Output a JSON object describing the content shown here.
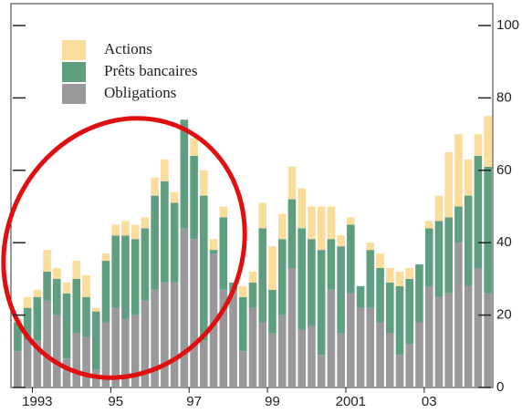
{
  "chart_data": {
    "type": "stacked-bar",
    "categories": [
      null,
      null,
      "1993",
      null,
      null,
      null,
      null,
      null,
      null,
      null,
      "95",
      null,
      null,
      null,
      null,
      null,
      null,
      null,
      "97",
      null,
      null,
      null,
      null,
      null,
      null,
      null,
      "99",
      null,
      null,
      null,
      null,
      null,
      null,
      null,
      "2001",
      null,
      null,
      null,
      null,
      null,
      null,
      null,
      "03",
      null,
      null,
      null,
      null,
      null,
      null
    ],
    "series": [
      {
        "name": "Obligations",
        "color": "#99999c",
        "values": [
          10,
          13,
          13,
          24,
          20,
          8,
          15,
          14,
          5,
          18,
          22,
          19,
          20,
          24,
          27,
          29,
          29,
          44,
          41,
          13,
          37,
          27,
          27,
          10,
          22,
          18,
          15,
          20,
          33,
          16,
          17,
          9,
          27,
          15,
          26,
          22,
          22,
          18,
          15,
          9,
          12,
          18,
          28,
          25,
          26,
          40,
          28,
          33,
          26
        ]
      },
      {
        "name": "Prêts bancaires",
        "color": "#5f9e7f",
        "values": [
          8,
          9,
          12,
          8,
          10,
          18,
          15,
          11,
          16,
          17,
          20,
          23,
          21,
          20,
          26,
          28,
          22,
          30,
          23,
          40,
          1,
          20,
          2,
          15,
          7,
          26,
          12,
          21,
          19,
          28,
          24,
          29,
          14,
          24,
          19,
          6,
          16,
          15,
          14,
          19,
          18,
          16,
          16,
          21,
          21,
          10,
          25,
          31,
          35
        ]
      },
      {
        "name": "Actions",
        "color": "#fadd9d",
        "values": [
          1,
          3,
          2,
          6,
          3,
          3,
          5,
          6,
          1,
          2,
          3,
          4,
          4,
          3,
          5,
          6,
          3,
          0,
          5,
          7,
          3,
          3,
          0,
          3,
          3,
          7,
          12,
          7,
          9,
          11,
          9,
          12,
          9,
          3,
          2,
          0,
          2,
          4,
          4,
          4,
          3,
          0,
          2,
          7,
          18,
          20,
          10,
          6,
          14
        ]
      }
    ],
    "ylim": [
      0,
      100
    ],
    "yticks": [
      0,
      20,
      40,
      60,
      80,
      100
    ]
  }
}
